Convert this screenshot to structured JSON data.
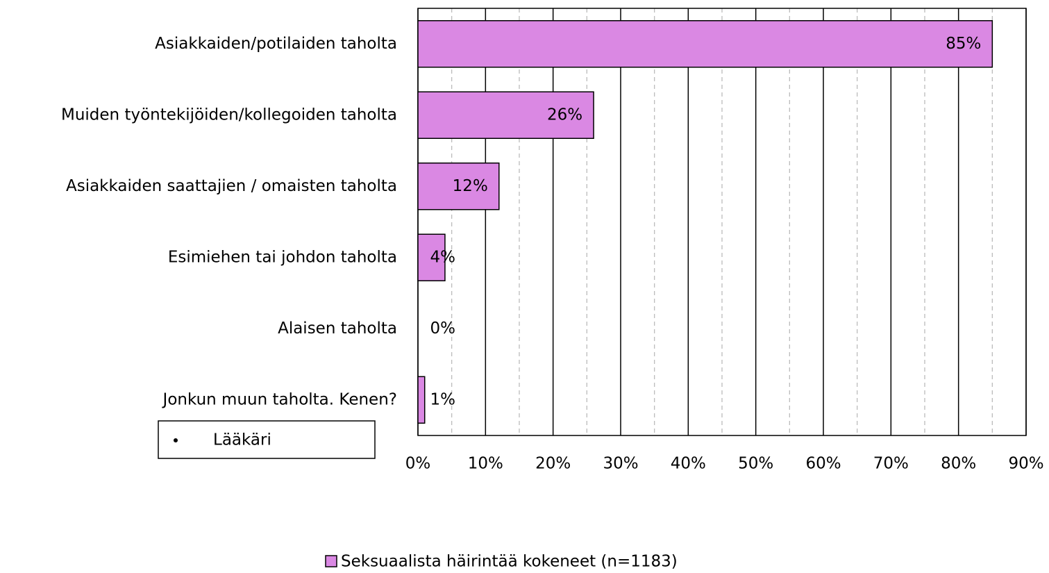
{
  "chart_data": {
    "type": "barh",
    "categories": [
      "Asiakkaiden/potilaiden taholta",
      "Muiden työntekijöiden/kollegoiden taholta",
      "Asiakkaiden saattajien / omaisten  taholta",
      "Esimiehen tai johdon taholta",
      "Alaisen taholta",
      "Jonkun muun taholta. Kenen?"
    ],
    "series": [
      {
        "name": "Seksuaalista häirintää kokeneet (n=1183)",
        "color": "#da88e3",
        "values": [
          85,
          26,
          12,
          4,
          0,
          1
        ],
        "value_labels": [
          "85%",
          "26%",
          "12%",
          "4%",
          "0%",
          "1%"
        ]
      }
    ],
    "xlim": [
      0,
      90
    ],
    "xticks": [
      {
        "value": 0,
        "label": "0%"
      },
      {
        "value": 10,
        "label": "10%"
      },
      {
        "value": 20,
        "label": "20%"
      },
      {
        "value": 30,
        "label": "30%"
      },
      {
        "value": 40,
        "label": "40%"
      },
      {
        "value": 50,
        "label": "50%"
      },
      {
        "value": 60,
        "label": "60%"
      },
      {
        "value": 70,
        "label": "70%"
      },
      {
        "value": 80,
        "label": "80%"
      },
      {
        "value": 90,
        "label": "90%"
      }
    ],
    "minor_xticks": [
      5,
      15,
      25,
      35,
      45,
      55,
      65,
      75,
      85
    ],
    "grid": true,
    "legend": "bottom",
    "annotation": "Lääkäri"
  }
}
